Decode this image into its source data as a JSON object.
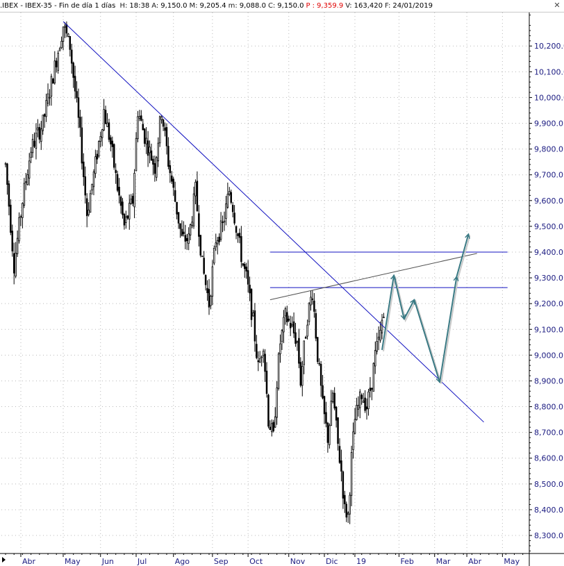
{
  "header": {
    "symbol": ".IBEX - IBEX-35 - Fin de día 1 días",
    "fields": [
      {
        "key": "H:",
        "value": "18:38",
        "red": false
      },
      {
        "key": "A:",
        "value": "9,150.0",
        "red": false
      },
      {
        "key": "M:",
        "value": "9,205.4",
        "red": false
      },
      {
        "key": "m:",
        "value": "9,088.0",
        "red": false
      },
      {
        "key": "C:",
        "value": "9,150.0",
        "red": false
      },
      {
        "key": "P :",
        "value": "9,359.9",
        "red": true
      },
      {
        "key": "V:",
        "value": "163,420",
        "red": false
      },
      {
        "key": "F:",
        "value": "24/01/2019",
        "red": false
      }
    ],
    "close_icon": "close-icon"
  },
  "chart_data": {
    "type": "candlestick",
    "title": "",
    "xlabel": "",
    "ylabel": "",
    "ylim": [
      8230,
      10330
    ],
    "y_ticks": [
      8300,
      8400,
      8500,
      8600,
      8700,
      8800,
      8900,
      9000,
      9100,
      9200,
      9300,
      9400,
      9500,
      9600,
      9700,
      9800,
      9900,
      10000,
      10100,
      10200
    ],
    "y_tick_labels": [
      "8,300.0",
      "8,400.0",
      "8,500.0",
      "8,600.0",
      "8,700.0",
      "8,800.0",
      "8,900.0",
      "9,000.0",
      "9,100.0",
      "9,200.0",
      "9,300.0",
      "9,400.0",
      "9,500.0",
      "9,600.0",
      "9,700.0",
      "9,800.0",
      "9,900.0",
      "10,000.0",
      "10,100.0",
      "10,200.0"
    ],
    "x_range": [
      0,
      308
    ],
    "month_ticks": [
      {
        "label": "Abr",
        "day": 9
      },
      {
        "label": "May",
        "day": 34
      },
      {
        "label": "Jun",
        "day": 56
      },
      {
        "label": "Jul",
        "day": 77
      },
      {
        "label": "Ago",
        "day": 99
      },
      {
        "label": "Sep",
        "day": 122
      },
      {
        "label": "Oct",
        "day": 143
      },
      {
        "label": "Nov",
        "day": 167
      },
      {
        "label": "Dic",
        "day": 188
      },
      {
        "label": "19",
        "day": 206
      },
      {
        "label": "Feb",
        "day": 232
      },
      {
        "label": "Mar",
        "day": 253
      },
      {
        "label": "Abr",
        "day": 272
      },
      {
        "label": "May",
        "day": 293
      }
    ],
    "anchors": [
      [
        0,
        9740
      ],
      [
        5,
        9350
      ],
      [
        10,
        9600
      ],
      [
        15,
        9800
      ],
      [
        22,
        9900
      ],
      [
        30,
        10150
      ],
      [
        34,
        10280
      ],
      [
        38,
        10200
      ],
      [
        44,
        9850
      ],
      [
        48,
        9550
      ],
      [
        52,
        9700
      ],
      [
        58,
        9950
      ],
      [
        62,
        9820
      ],
      [
        66,
        9650
      ],
      [
        70,
        9500
      ],
      [
        75,
        9600
      ],
      [
        78,
        9950
      ],
      [
        82,
        9850
      ],
      [
        88,
        9730
      ],
      [
        92,
        9950
      ],
      [
        96,
        9750
      ],
      [
        100,
        9600
      ],
      [
        104,
        9450
      ],
      [
        108,
        9450
      ],
      [
        112,
        9640
      ],
      [
        116,
        9350
      ],
      [
        120,
        9200
      ],
      [
        124,
        9450
      ],
      [
        128,
        9500
      ],
      [
        132,
        9640
      ],
      [
        134,
        9580
      ],
      [
        136,
        9500
      ],
      [
        140,
        9350
      ],
      [
        142,
        9300
      ],
      [
        146,
        9130
      ],
      [
        149,
        8950
      ],
      [
        152,
        9050
      ],
      [
        155,
        8750
      ],
      [
        158,
        8680
      ],
      [
        160,
        8900
      ],
      [
        162,
        9050
      ],
      [
        165,
        9150
      ],
      [
        168,
        9120
      ],
      [
        172,
        9050
      ],
      [
        174,
        8900
      ],
      [
        178,
        9150
      ],
      [
        181,
        9250
      ],
      [
        184,
        9000
      ],
      [
        187,
        8800
      ],
      [
        190,
        8680
      ],
      [
        193,
        8850
      ],
      [
        196,
        8650
      ],
      [
        198,
        8550
      ],
      [
        200,
        8400
      ],
      [
        202,
        8380
      ],
      [
        204,
        8600
      ],
      [
        206,
        8750
      ],
      [
        210,
        8850
      ],
      [
        213,
        8800
      ],
      [
        216,
        8900
      ],
      [
        218,
        9000
      ],
      [
        221,
        9080
      ],
      [
        222,
        9130
      ],
      [
        223,
        9150
      ]
    ],
    "trendline_down": {
      "x1": 34,
      "y1": 10295,
      "x2": 282,
      "y2": 8740
    },
    "trendline_up": {
      "x1": 156,
      "y1": 9215,
      "x2": 278,
      "y2": 9395
    },
    "horizontal_levels": [
      {
        "y": 9400,
        "x1": 156,
        "x2": 296
      },
      {
        "y": 9262,
        "x1": 156,
        "x2": 296
      }
    ],
    "projection": [
      [
        222,
        9020
      ],
      [
        229,
        9310
      ],
      [
        235,
        9140
      ],
      [
        241,
        9215
      ],
      [
        256,
        8895
      ],
      [
        266,
        9305
      ],
      [
        273,
        9470
      ]
    ],
    "grid": true,
    "colors": {
      "candle": "#000000",
      "trendline": "#1010c0",
      "support_resistance": "#1010c0",
      "rising_line": "#505050",
      "projection": "#3a7a84",
      "axis_text": "#1a1a80",
      "grid": "#b8b8b8"
    }
  }
}
